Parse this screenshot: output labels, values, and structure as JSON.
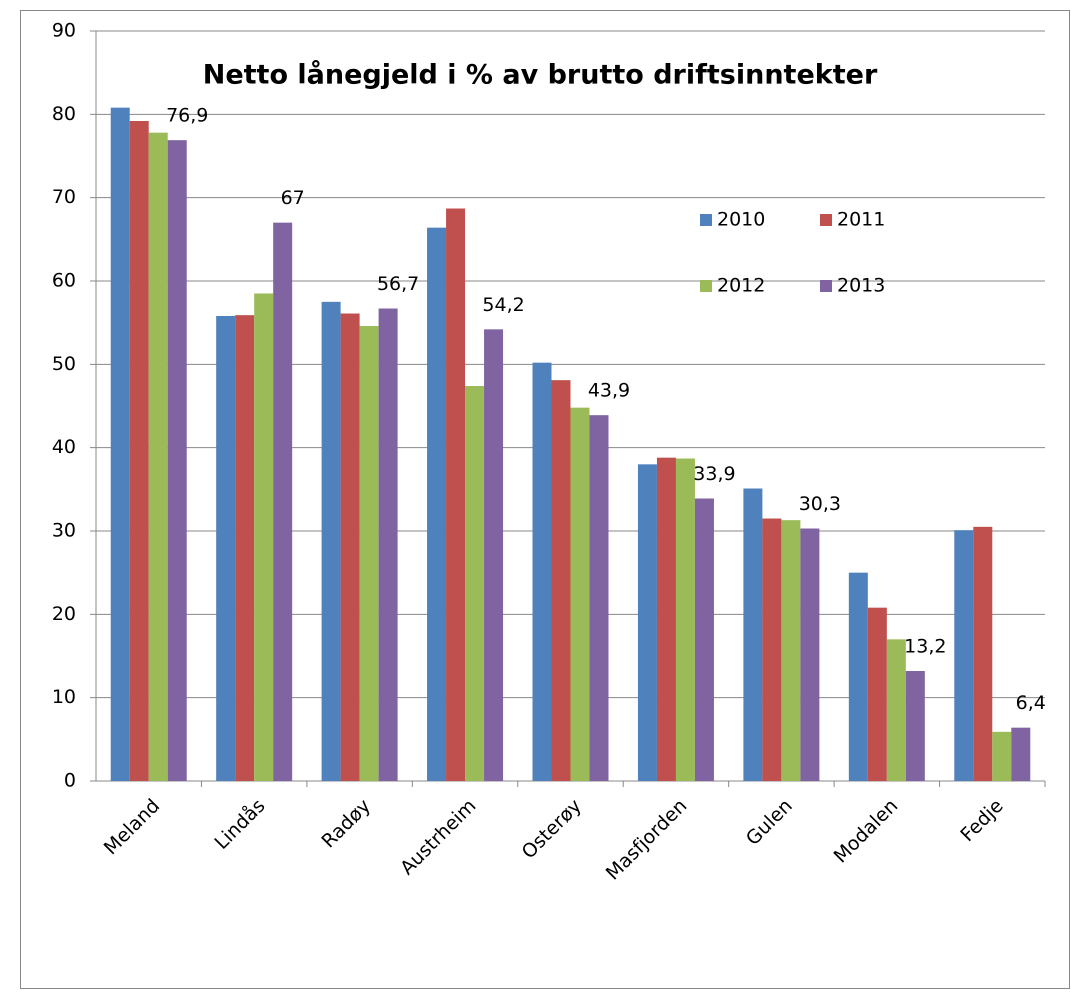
{
  "chart_data": {
    "type": "bar",
    "title": "Netto lånegjeld i % av brutto driftsinntekter",
    "categories": [
      "Meland",
      "Lindås",
      "Radøy",
      "Austrheim",
      "Osterøy",
      "Masfjorden",
      "Gulen",
      "Modalen",
      "Fedje"
    ],
    "series": [
      {
        "name": "2010",
        "color": "#4f81bd",
        "values": [
          80.8,
          55.8,
          57.5,
          66.4,
          50.2,
          38.0,
          35.1,
          25.0,
          30.1
        ]
      },
      {
        "name": "2011",
        "color": "#c0504d",
        "values": [
          79.2,
          55.9,
          56.1,
          68.7,
          48.1,
          38.8,
          31.5,
          20.8,
          30.5
        ]
      },
      {
        "name": "2012",
        "color": "#9bbb59",
        "values": [
          77.8,
          58.5,
          54.6,
          47.4,
          44.8,
          38.7,
          31.3,
          17.0,
          5.9
        ]
      },
      {
        "name": "2013",
        "color": "#8064a2",
        "values": [
          76.9,
          67,
          56.7,
          54.2,
          43.9,
          33.9,
          30.3,
          13.2,
          6.4
        ],
        "value_labels": [
          "76,9",
          "67",
          "56,7",
          "54,2",
          "43,9",
          "33,9",
          "30,3",
          "13,2",
          "6,4"
        ]
      }
    ],
    "ylim": [
      0,
      90
    ],
    "yticks": [
      0,
      10,
      20,
      30,
      40,
      50,
      60,
      70,
      80,
      90
    ],
    "grid": true
  }
}
